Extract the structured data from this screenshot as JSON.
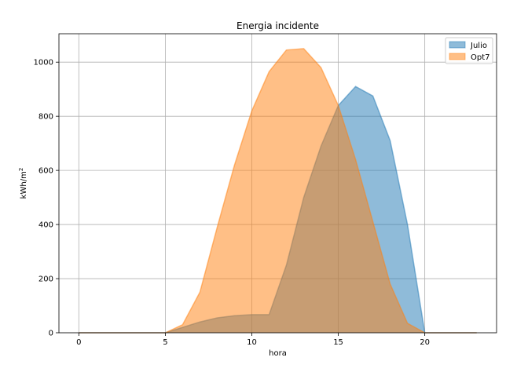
{
  "chart_data": {
    "type": "area",
    "title": "Energia incidente",
    "xlabel": "hora",
    "ylabel_main": "kWh/m",
    "ylabel_sup": "2",
    "xlim": [
      -1.15,
      24.15
    ],
    "ylim": [
      0,
      1105
    ],
    "xticks": [
      0,
      5,
      10,
      15,
      20
    ],
    "yticks": [
      0,
      200,
      400,
      600,
      800,
      1000
    ],
    "grid": true,
    "legend_position": "top-right",
    "x": [
      0,
      1,
      2,
      3,
      4,
      5,
      6,
      7,
      8,
      9,
      10,
      11,
      12,
      13,
      14,
      15,
      16,
      17,
      18,
      19,
      20,
      21,
      22,
      23
    ],
    "series": [
      {
        "name": "Julio",
        "color": "#1f77b4",
        "values": [
          0,
          0,
          0,
          0,
          0,
          0,
          20,
          40,
          55,
          63,
          67,
          67,
          250,
          500,
          690,
          840,
          910,
          875,
          710,
          400,
          0,
          0,
          0,
          0
        ]
      },
      {
        "name": "Opt7",
        "color": "#ff7f0e",
        "values": [
          0,
          0,
          0,
          0,
          0,
          0,
          30,
          150,
          390,
          620,
          820,
          965,
          1045,
          1050,
          980,
          840,
          640,
          410,
          180,
          35,
          0,
          0,
          0,
          0
        ]
      }
    ]
  }
}
